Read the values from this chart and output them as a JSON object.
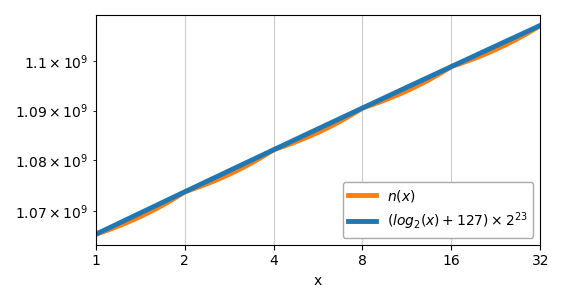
{
  "title": "",
  "xlabel": "x",
  "ylabel": "",
  "xscale": "log",
  "yscale": "log",
  "xbase": 2,
  "xticks": [
    1,
    2,
    4,
    8,
    16,
    32
  ],
  "xtick_labels": [
    "1",
    "2",
    "4",
    "8",
    "16",
    "32"
  ],
  "x_min": 1,
  "x_max": 32,
  "line1_color": "#1f77b4",
  "line2_color": "#ff7f0e",
  "line1_label": "$(log_2(x) + 127) \\times 2^{23}$",
  "line2_label": "$n(x)$",
  "line_width": 3.5,
  "legend_loc": "lower right",
  "grid": true,
  "grid_color": "#cccccc",
  "bg_color": "#ffffff",
  "fig_width": 5.64,
  "fig_height": 3.03,
  "dpi": 100
}
